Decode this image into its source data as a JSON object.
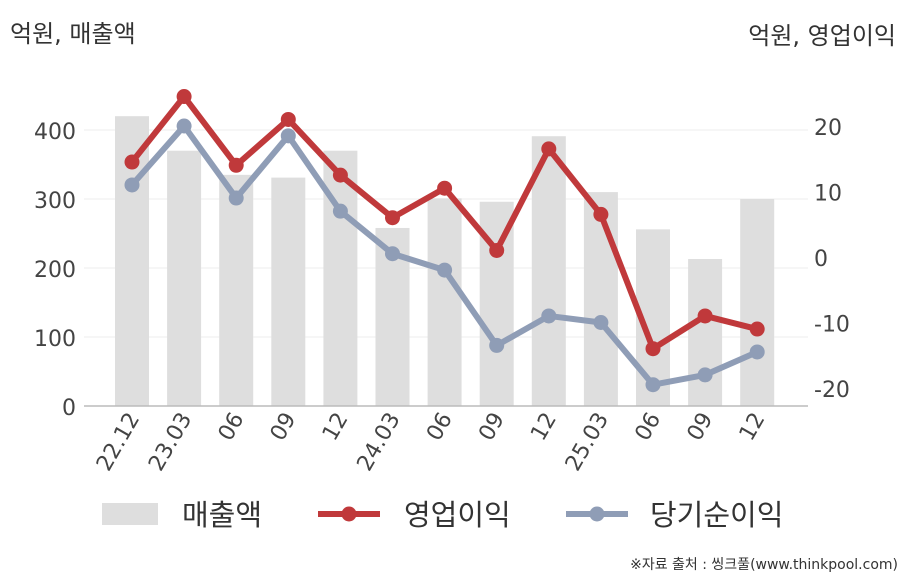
{
  "left_axis_unit": "억원, 매출액",
  "right_axis_unit": "억원, 영업이익",
  "source": "※자료 출처 : 씽크풀(www.thinkpool.com)",
  "colors": {
    "revenue": "#dedede",
    "operating_profit": "#c0393b",
    "net_income": "#8f9db6",
    "axis": "#bbbbbb",
    "grid": "#eeeeee"
  },
  "chart_data": {
    "type": "bar",
    "categories": [
      "22.12",
      "23.03",
      "06",
      "09",
      "12",
      "24.03",
      "06",
      "09",
      "12",
      "25.03",
      "06",
      "09",
      "12"
    ],
    "series": [
      {
        "name": "매출액",
        "type": "bar",
        "axis": "left",
        "values": [
          420,
          370,
          335,
          331,
          370,
          258,
          301,
          296,
          391,
          310,
          256,
          213,
          300
        ]
      },
      {
        "name": "영업이익",
        "type": "line",
        "axis": "right",
        "values": [
          14.5,
          24.5,
          14,
          21,
          12.5,
          6,
          10.5,
          1,
          16.5,
          6.5,
          -14,
          -9,
          -11
        ]
      },
      {
        "name": "당기순이익",
        "type": "line",
        "axis": "right",
        "values": [
          11,
          20,
          9,
          18.5,
          7,
          0.5,
          -2,
          -13.5,
          -9,
          -10,
          -19.5,
          -18,
          -14.5
        ]
      }
    ],
    "left_axis": {
      "ylim": [
        0,
        400
      ],
      "ticks": [
        0,
        100,
        200,
        300,
        400
      ]
    },
    "right_axis": {
      "ylim": [
        -20,
        20
      ],
      "ticks": [
        -20,
        -10,
        0,
        10,
        20
      ]
    },
    "legend": [
      {
        "label": "매출액",
        "kind": "bar"
      },
      {
        "label": "영업이익",
        "kind": "line"
      },
      {
        "label": "당기순이익",
        "kind": "line"
      }
    ]
  }
}
